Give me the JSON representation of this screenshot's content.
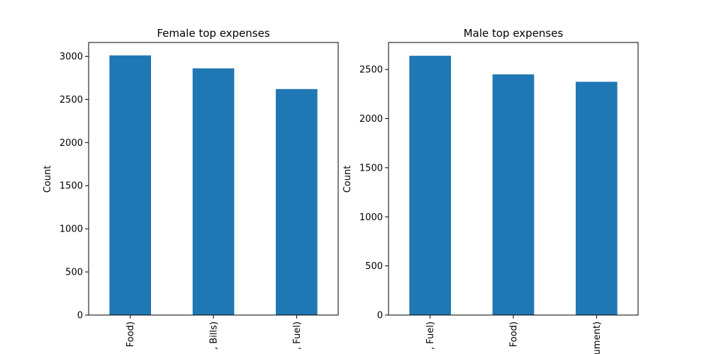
{
  "chart_data": [
    {
      "type": "bar",
      "title": "Female top expenses",
      "xlabel": "",
      "ylabel": "Count",
      "categories": [
        "Food)",
        ", Bills)",
        ", Fuel)"
      ],
      "values": [
        3010,
        2860,
        2620
      ],
      "ylim": [
        0,
        3160
      ],
      "yticks": [
        0,
        500,
        1000,
        1500,
        2000,
        2500,
        3000
      ],
      "color": "#1f77b4",
      "grid": false,
      "legend": "none"
    },
    {
      "type": "bar",
      "title": "Male top expenses",
      "xlabel": "",
      "ylabel": "Count",
      "categories": [
        ", Fuel)",
        "Food)",
        "ument)"
      ],
      "values": [
        2640,
        2450,
        2375
      ],
      "ylim": [
        0,
        2775
      ],
      "yticks": [
        0,
        500,
        1000,
        1500,
        2000,
        2500
      ],
      "color": "#1f77b4",
      "grid": false,
      "legend": "none"
    }
  ]
}
